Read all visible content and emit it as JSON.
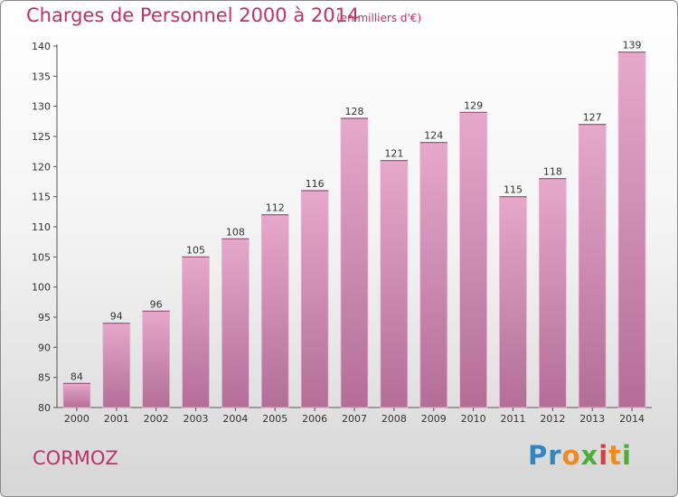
{
  "header": {
    "title": "Charges de Personnel 2000 à 2014",
    "subtitle": "(en milliers d'€)"
  },
  "footer": {
    "commune": "CORMOZ",
    "logo_text": "Proxiti"
  },
  "colors": {
    "accent": "#c0306a",
    "bar_top": "#e6a8cb",
    "bar_bottom": "#b36e97"
  },
  "chart_data": {
    "type": "bar",
    "categories": [
      "2000",
      "2001",
      "2002",
      "2003",
      "2004",
      "2005",
      "2006",
      "2007",
      "2008",
      "2009",
      "2010",
      "2011",
      "2012",
      "2013",
      "2014"
    ],
    "values": [
      84,
      94,
      96,
      105,
      108,
      112,
      116,
      128,
      121,
      124,
      129,
      115,
      118,
      127,
      139
    ],
    "title": "Charges de Personnel 2000 à 2014",
    "subtitle": "(en milliers d'€)",
    "xlabel": "",
    "ylabel": "",
    "ylim": [
      80,
      140
    ],
    "yticks": [
      80,
      85,
      90,
      95,
      100,
      105,
      110,
      115,
      120,
      125,
      130,
      135,
      140
    ],
    "grid": false,
    "legend": "none"
  }
}
